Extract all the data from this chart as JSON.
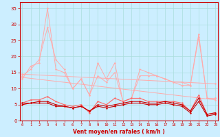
{
  "x": [
    0,
    1,
    2,
    3,
    4,
    5,
    6,
    7,
    8,
    9,
    10,
    11,
    12,
    13,
    14,
    15,
    16,
    17,
    18,
    19,
    20,
    21,
    22,
    23
  ],
  "line1": [
    14,
    16,
    19,
    29,
    19,
    16,
    10,
    13,
    8,
    18,
    13,
    18,
    6,
    7,
    16,
    15,
    14,
    13,
    12,
    11,
    11,
    27,
    7,
    7
  ],
  "line2": [
    13,
    17,
    18,
    35,
    16,
    15,
    10,
    13,
    8,
    14,
    12,
    15,
    6,
    7,
    14,
    14,
    14,
    13,
    12,
    12,
    11,
    26,
    7,
    7
  ],
  "line3": [
    5.5,
    6.5,
    6.5,
    7.5,
    6,
    5,
    4.5,
    5,
    2.5,
    6,
    5,
    7,
    6,
    7,
    7,
    6,
    6,
    6,
    6,
    5.5,
    3,
    8,
    2,
    2.5
  ],
  "line4": [
    5.5,
    5.5,
    6,
    6,
    5,
    4.5,
    4,
    4.5,
    3,
    5,
    4.5,
    5,
    5.5,
    6,
    6,
    5.5,
    5.5,
    6,
    5.5,
    5,
    3,
    7,
    2,
    2.5
  ],
  "line5": [
    5,
    5.5,
    5.5,
    5.5,
    4.5,
    4.5,
    4,
    4.5,
    3,
    4.5,
    4,
    4.5,
    5,
    5.5,
    5.5,
    5,
    5,
    5.5,
    5,
    4.5,
    2.5,
    6,
    1.5,
    2
  ],
  "line6_x": [
    0,
    23
  ],
  "line6_y": [
    13.5,
    6.5
  ],
  "line7_x": [
    0,
    23
  ],
  "line7_y": [
    14.5,
    11.5
  ],
  "background_color": "#cceeff",
  "grid_color": "#aadddd",
  "line_color_dark": "#cc0000",
  "line_color_light": "#ffaaaa",
  "line_color_mid": "#ff6666",
  "xlabel": "Vent moyen/en rafales ( km/h )",
  "yticks": [
    0,
    5,
    10,
    15,
    20,
    25,
    30,
    35
  ],
  "xticks": [
    0,
    1,
    2,
    3,
    4,
    5,
    6,
    7,
    8,
    9,
    10,
    11,
    12,
    13,
    14,
    15,
    16,
    17,
    18,
    19,
    20,
    21,
    22,
    23
  ],
  "ylim": [
    0,
    37
  ],
  "xlim": [
    -0.3,
    23.3
  ]
}
